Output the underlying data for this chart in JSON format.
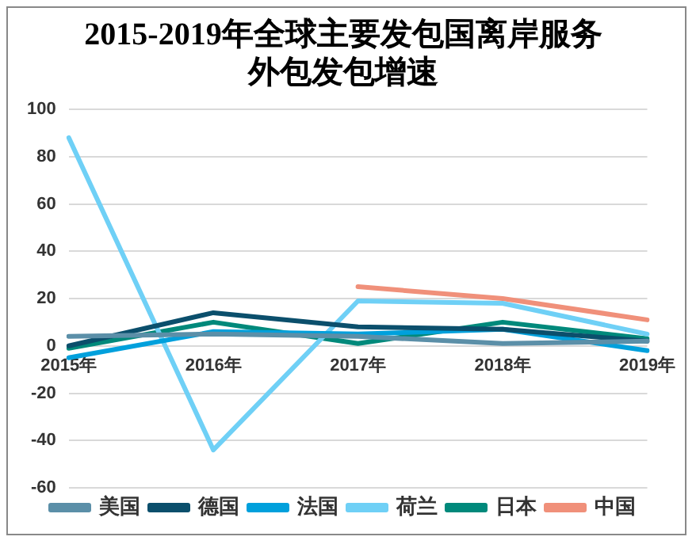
{
  "chart_data": {
    "type": "line",
    "title": "2015-2019年全球主要发包国离岸服务外包发包增速",
    "categories": [
      "2015年",
      "2016年",
      "2017年",
      "2018年",
      "2019年"
    ],
    "series": [
      {
        "name": "美国",
        "color": "#5b8fa8",
        "values": [
          4,
          5,
          4,
          1,
          2
        ]
      },
      {
        "name": "德国",
        "color": "#0b4f6c",
        "values": [
          0,
          14,
          8,
          7,
          2
        ]
      },
      {
        "name": "法国",
        "color": "#00a0dc",
        "values": [
          -5,
          6,
          5,
          7,
          -2
        ]
      },
      {
        "name": "荷兰",
        "color": "#6fd0f6",
        "values": [
          88,
          -44,
          19,
          18,
          5
        ]
      },
      {
        "name": "日本",
        "color": "#00897b",
        "values": [
          -1,
          10,
          1,
          10,
          3
        ]
      },
      {
        "name": "中国",
        "color": "#f0907a",
        "values": [
          null,
          null,
          25,
          20,
          11
        ]
      }
    ],
    "ylim": [
      -60,
      100
    ],
    "yticks": [
      -60,
      -40,
      -20,
      0,
      20,
      40,
      60,
      80,
      100
    ],
    "grid": "y",
    "legend": "bottom",
    "marker": "none",
    "line_style": "solid"
  }
}
